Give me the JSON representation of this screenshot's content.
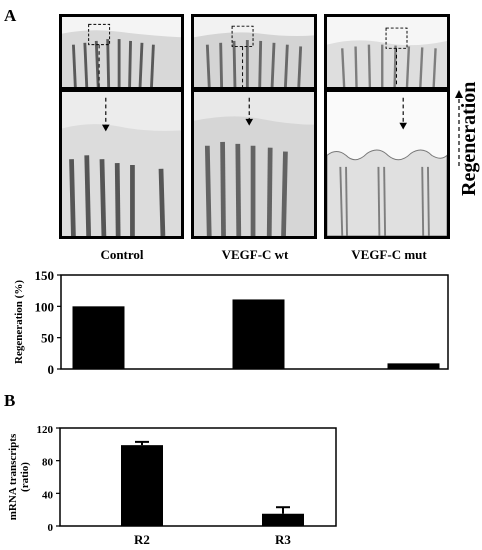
{
  "panels": {
    "a_label": "A",
    "b_label": "B"
  },
  "conditions": [
    "Control",
    "VEGF-C wt",
    "VEGF-C mut"
  ],
  "side_label": "Regeneration",
  "chart_data": [
    {
      "type": "bar",
      "categories": [
        "Control",
        "VEGF-C wt",
        "VEGF-C mut"
      ],
      "values": [
        100,
        111,
        9
      ],
      "ylabel": "Regeneration (%)",
      "xlabel": "",
      "ylim": [
        0,
        150
      ],
      "yticks": [
        0,
        50,
        100,
        150
      ],
      "show_xticklabels": false
    },
    {
      "type": "bar",
      "categories": [
        "R2",
        "R3"
      ],
      "values": [
        99,
        15
      ],
      "errors": [
        4,
        8
      ],
      "ylabel": "mRNA transcripts (ratio)",
      "ylabel_lines": [
        "mRNA transcripts",
        "(ratio)"
      ],
      "xlabel": "",
      "ylim": [
        0,
        120
      ],
      "yticks": [
        0,
        40,
        80,
        120
      ],
      "show_xticklabels": true
    }
  ],
  "colors": {
    "bar": "#000000",
    "frame": "#000000"
  }
}
